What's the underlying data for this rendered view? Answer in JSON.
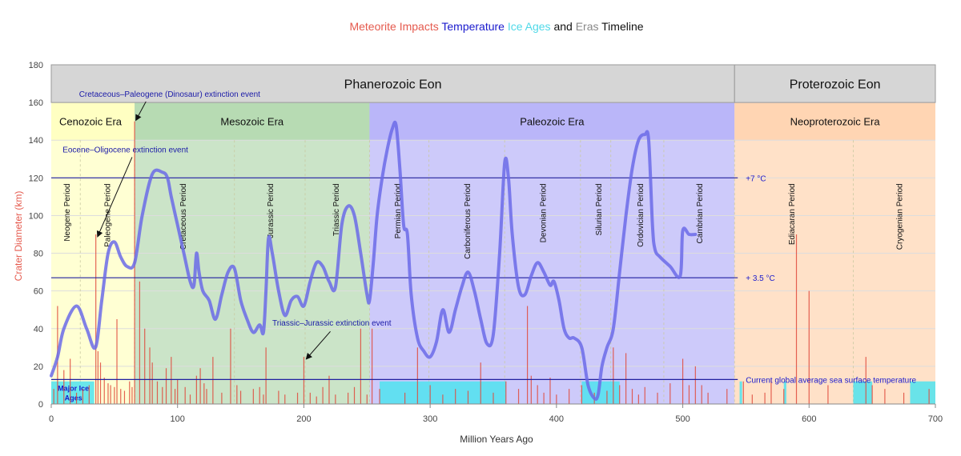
{
  "chart_data": {
    "type": "timeline",
    "title_parts": [
      {
        "text": "Meteorite Impacts",
        "color": "#e55a4e"
      },
      {
        "text": "Temperature",
        "color": "#1a1acd"
      },
      {
        "text": "Ice Ages",
        "color": "#4fd9e8"
      },
      {
        "text": "and",
        "color": "#111111"
      },
      {
        "text": "Eras",
        "color": "#888888"
      },
      {
        "text": "Timeline",
        "color": "#111111"
      }
    ],
    "xlabel": "Million Years Ago",
    "ylabel": "Crater Diameter (km)",
    "xlim": [
      0,
      700
    ],
    "ylim": [
      0,
      180
    ],
    "x_ticks": [
      0,
      100,
      200,
      300,
      400,
      500,
      600,
      700
    ],
    "y_ticks": [
      0,
      20,
      40,
      60,
      80,
      100,
      120,
      140,
      160,
      180
    ],
    "eons": [
      {
        "name": "Phanerozoic Eon",
        "start": 0,
        "end": 541
      },
      {
        "name": "Proterozoic Eon",
        "start": 541,
        "end": 700
      }
    ],
    "eras": [
      {
        "name": "Cenozoic Era",
        "start": 0,
        "end": 66,
        "color": "#ffffc0"
      },
      {
        "name": "Mesozoic Era",
        "start": 66,
        "end": 252,
        "color": "#b5d9b0"
      },
      {
        "name": "Paleozoic Era",
        "start": 252,
        "end": 541,
        "color": "#b8b4f8"
      },
      {
        "name": "Neoproterozoic Era",
        "start": 541,
        "end": 700,
        "color": "#ffd4b0"
      }
    ],
    "periods": [
      {
        "name": "Neogene Period",
        "x": 12
      },
      {
        "name": "Paleogene Period",
        "x": 44
      },
      {
        "name": "Cretaceous Period",
        "x": 104
      },
      {
        "name": "Jurassic Period",
        "x": 173
      },
      {
        "name": "Triassic Period",
        "x": 225
      },
      {
        "name": "Permian Period",
        "x": 274
      },
      {
        "name": "Carboniferous Period",
        "x": 329
      },
      {
        "name": "Devonian Period",
        "x": 389
      },
      {
        "name": "Silurian Period",
        "x": 433
      },
      {
        "name": "Ordovician Period",
        "x": 466
      },
      {
        "name": "Cambrian Period",
        "x": 513
      },
      {
        "name": "Ediacaran Period",
        "x": 586
      },
      {
        "name": "Cryogenian Period",
        "x": 671
      }
    ],
    "period_boundaries": [
      23,
      66,
      145,
      201,
      252,
      299,
      359,
      419,
      443,
      485,
      541,
      635
    ],
    "temperature_levels": [
      {
        "label": "+7 °C",
        "y": 120
      },
      {
        "label": "+ 3.5 °C",
        "y": 67
      },
      {
        "label": "Current  global average sea surface temperature",
        "y": 13
      }
    ],
    "temperature_curve": {
      "x": [
        0,
        5,
        10,
        20,
        28,
        35,
        40,
        45,
        50,
        55,
        60,
        66,
        72,
        80,
        88,
        92,
        95,
        100,
        105,
        110,
        113,
        115,
        117,
        120,
        125,
        130,
        135,
        140,
        145,
        150,
        155,
        160,
        165,
        168,
        170,
        172,
        175,
        180,
        185,
        190,
        195,
        200,
        205,
        210,
        215,
        220,
        225,
        230,
        235,
        240,
        245,
        250,
        252,
        255,
        258,
        262,
        266,
        270,
        273,
        276,
        279,
        282,
        285,
        290,
        295,
        300,
        305,
        310,
        315,
        320,
        325,
        330,
        335,
        340,
        345,
        350,
        355,
        359,
        362,
        365,
        370,
        375,
        380,
        385,
        390,
        395,
        398,
        402,
        406,
        410,
        414,
        420,
        425,
        430,
        433,
        436,
        440,
        445,
        450,
        455,
        460,
        465,
        470,
        473,
        476,
        478,
        482,
        490,
        498,
        500,
        505,
        510
      ],
      "y": [
        15,
        25,
        40,
        52,
        40,
        30,
        55,
        80,
        86,
        78,
        73,
        75,
        100,
        122,
        123,
        120,
        110,
        95,
        80,
        65,
        63,
        80,
        70,
        60,
        55,
        45,
        58,
        70,
        72,
        55,
        45,
        38,
        42,
        38,
        60,
        88,
        80,
        60,
        47,
        55,
        57,
        52,
        65,
        75,
        73,
        65,
        62,
        95,
        105,
        100,
        80,
        58,
        55,
        75,
        100,
        120,
        135,
        146,
        148,
        125,
        95,
        90,
        58,
        35,
        28,
        25,
        33,
        50,
        38,
        50,
        62,
        70,
        60,
        45,
        32,
        37,
        80,
        128,
        120,
        90,
        62,
        58,
        68,
        75,
        70,
        63,
        65,
        55,
        40,
        35,
        35,
        30,
        10,
        3,
        5,
        20,
        30,
        40,
        70,
        100,
        125,
        140,
        143,
        140,
        95,
        82,
        78,
        73,
        68,
        92,
        90,
        90
      ]
    },
    "ice_ages": [
      {
        "start": 0,
        "end": 34
      },
      {
        "start": 260,
        "end": 360
      },
      {
        "start": 420,
        "end": 450
      },
      {
        "start": 545,
        "end": 547
      },
      {
        "start": 580,
        "end": 582
      },
      {
        "start": 635,
        "end": 650
      },
      {
        "start": 680,
        "end": 700
      }
    ],
    "impacts": [
      {
        "x": 2,
        "d": 8
      },
      {
        "x": 5,
        "d": 52
      },
      {
        "x": 10,
        "d": 18
      },
      {
        "x": 15,
        "d": 24
      },
      {
        "x": 20,
        "d": 6
      },
      {
        "x": 25,
        "d": 8
      },
      {
        "x": 30,
        "d": 10
      },
      {
        "x": 35.3,
        "d": 90
      },
      {
        "x": 37,
        "d": 28
      },
      {
        "x": 39,
        "d": 22
      },
      {
        "x": 42,
        "d": 14
      },
      {
        "x": 45,
        "d": 11
      },
      {
        "x": 47,
        "d": 10
      },
      {
        "x": 50,
        "d": 9
      },
      {
        "x": 52,
        "d": 45
      },
      {
        "x": 55,
        "d": 8
      },
      {
        "x": 58,
        "d": 7
      },
      {
        "x": 62,
        "d": 12
      },
      {
        "x": 64,
        "d": 9
      },
      {
        "x": 66,
        "d": 150
      },
      {
        "x": 70,
        "d": 65
      },
      {
        "x": 74,
        "d": 40
      },
      {
        "x": 78,
        "d": 30
      },
      {
        "x": 80,
        "d": 22
      },
      {
        "x": 84,
        "d": 12
      },
      {
        "x": 88,
        "d": 9
      },
      {
        "x": 91,
        "d": 19
      },
      {
        "x": 95,
        "d": 25
      },
      {
        "x": 98,
        "d": 8
      },
      {
        "x": 100,
        "d": 13
      },
      {
        "x": 106,
        "d": 9
      },
      {
        "x": 110,
        "d": 5
      },
      {
        "x": 115,
        "d": 15
      },
      {
        "x": 118,
        "d": 19
      },
      {
        "x": 121,
        "d": 11
      },
      {
        "x": 123,
        "d": 8
      },
      {
        "x": 128,
        "d": 25
      },
      {
        "x": 135,
        "d": 6
      },
      {
        "x": 142,
        "d": 40
      },
      {
        "x": 147,
        "d": 10
      },
      {
        "x": 150,
        "d": 7
      },
      {
        "x": 160,
        "d": 8
      },
      {
        "x": 165,
        "d": 9
      },
      {
        "x": 168,
        "d": 5
      },
      {
        "x": 170,
        "d": 30
      },
      {
        "x": 180,
        "d": 7
      },
      {
        "x": 185,
        "d": 5
      },
      {
        "x": 195,
        "d": 6
      },
      {
        "x": 200,
        "d": 25
      },
      {
        "x": 205,
        "d": 6
      },
      {
        "x": 210,
        "d": 4
      },
      {
        "x": 215,
        "d": 9
      },
      {
        "x": 220,
        "d": 15
      },
      {
        "x": 225,
        "d": 5
      },
      {
        "x": 235,
        "d": 6
      },
      {
        "x": 240,
        "d": 9
      },
      {
        "x": 245,
        "d": 40
      },
      {
        "x": 250,
        "d": 5
      },
      {
        "x": 254,
        "d": 40
      },
      {
        "x": 260,
        "d": 8
      },
      {
        "x": 280,
        "d": 6
      },
      {
        "x": 290,
        "d": 30
      },
      {
        "x": 300,
        "d": 10
      },
      {
        "x": 310,
        "d": 5
      },
      {
        "x": 320,
        "d": 8
      },
      {
        "x": 330,
        "d": 7
      },
      {
        "x": 340,
        "d": 22
      },
      {
        "x": 350,
        "d": 6
      },
      {
        "x": 360,
        "d": 12
      },
      {
        "x": 370,
        "d": 8
      },
      {
        "x": 377,
        "d": 52
      },
      {
        "x": 380,
        "d": 15
      },
      {
        "x": 385,
        "d": 10
      },
      {
        "x": 390,
        "d": 6
      },
      {
        "x": 395,
        "d": 14
      },
      {
        "x": 400,
        "d": 5
      },
      {
        "x": 410,
        "d": 8
      },
      {
        "x": 420,
        "d": 10
      },
      {
        "x": 430,
        "d": 6
      },
      {
        "x": 440,
        "d": 7
      },
      {
        "x": 445,
        "d": 30
      },
      {
        "x": 450,
        "d": 10
      },
      {
        "x": 455,
        "d": 27
      },
      {
        "x": 460,
        "d": 8
      },
      {
        "x": 465,
        "d": 5
      },
      {
        "x": 470,
        "d": 9
      },
      {
        "x": 480,
        "d": 6
      },
      {
        "x": 490,
        "d": 11
      },
      {
        "x": 500,
        "d": 24
      },
      {
        "x": 505,
        "d": 10
      },
      {
        "x": 510,
        "d": 20
      },
      {
        "x": 515,
        "d": 10
      },
      {
        "x": 520,
        "d": 6
      },
      {
        "x": 535,
        "d": 8
      },
      {
        "x": 548,
        "d": 12
      },
      {
        "x": 555,
        "d": 5
      },
      {
        "x": 565,
        "d": 6
      },
      {
        "x": 570,
        "d": 13
      },
      {
        "x": 580,
        "d": 8
      },
      {
        "x": 590,
        "d": 90
      },
      {
        "x": 600,
        "d": 60
      },
      {
        "x": 615,
        "d": 10
      },
      {
        "x": 645,
        "d": 25
      },
      {
        "x": 650,
        "d": 10
      },
      {
        "x": 660,
        "d": 8
      },
      {
        "x": 675,
        "d": 6
      },
      {
        "x": 695,
        "d": 8
      }
    ],
    "annotations": [
      {
        "text": "Cretaceous–Paleogene (Dinosaur) extinction event",
        "x": 66,
        "y": 150
      },
      {
        "text": "Eocene–Oligocene extinction event",
        "x": 35,
        "y": 90
      },
      {
        "text": "Triassic–Jurassic extinction event",
        "x": 201,
        "y": 25
      }
    ],
    "ice_age_label": "Major Ice Ages"
  }
}
